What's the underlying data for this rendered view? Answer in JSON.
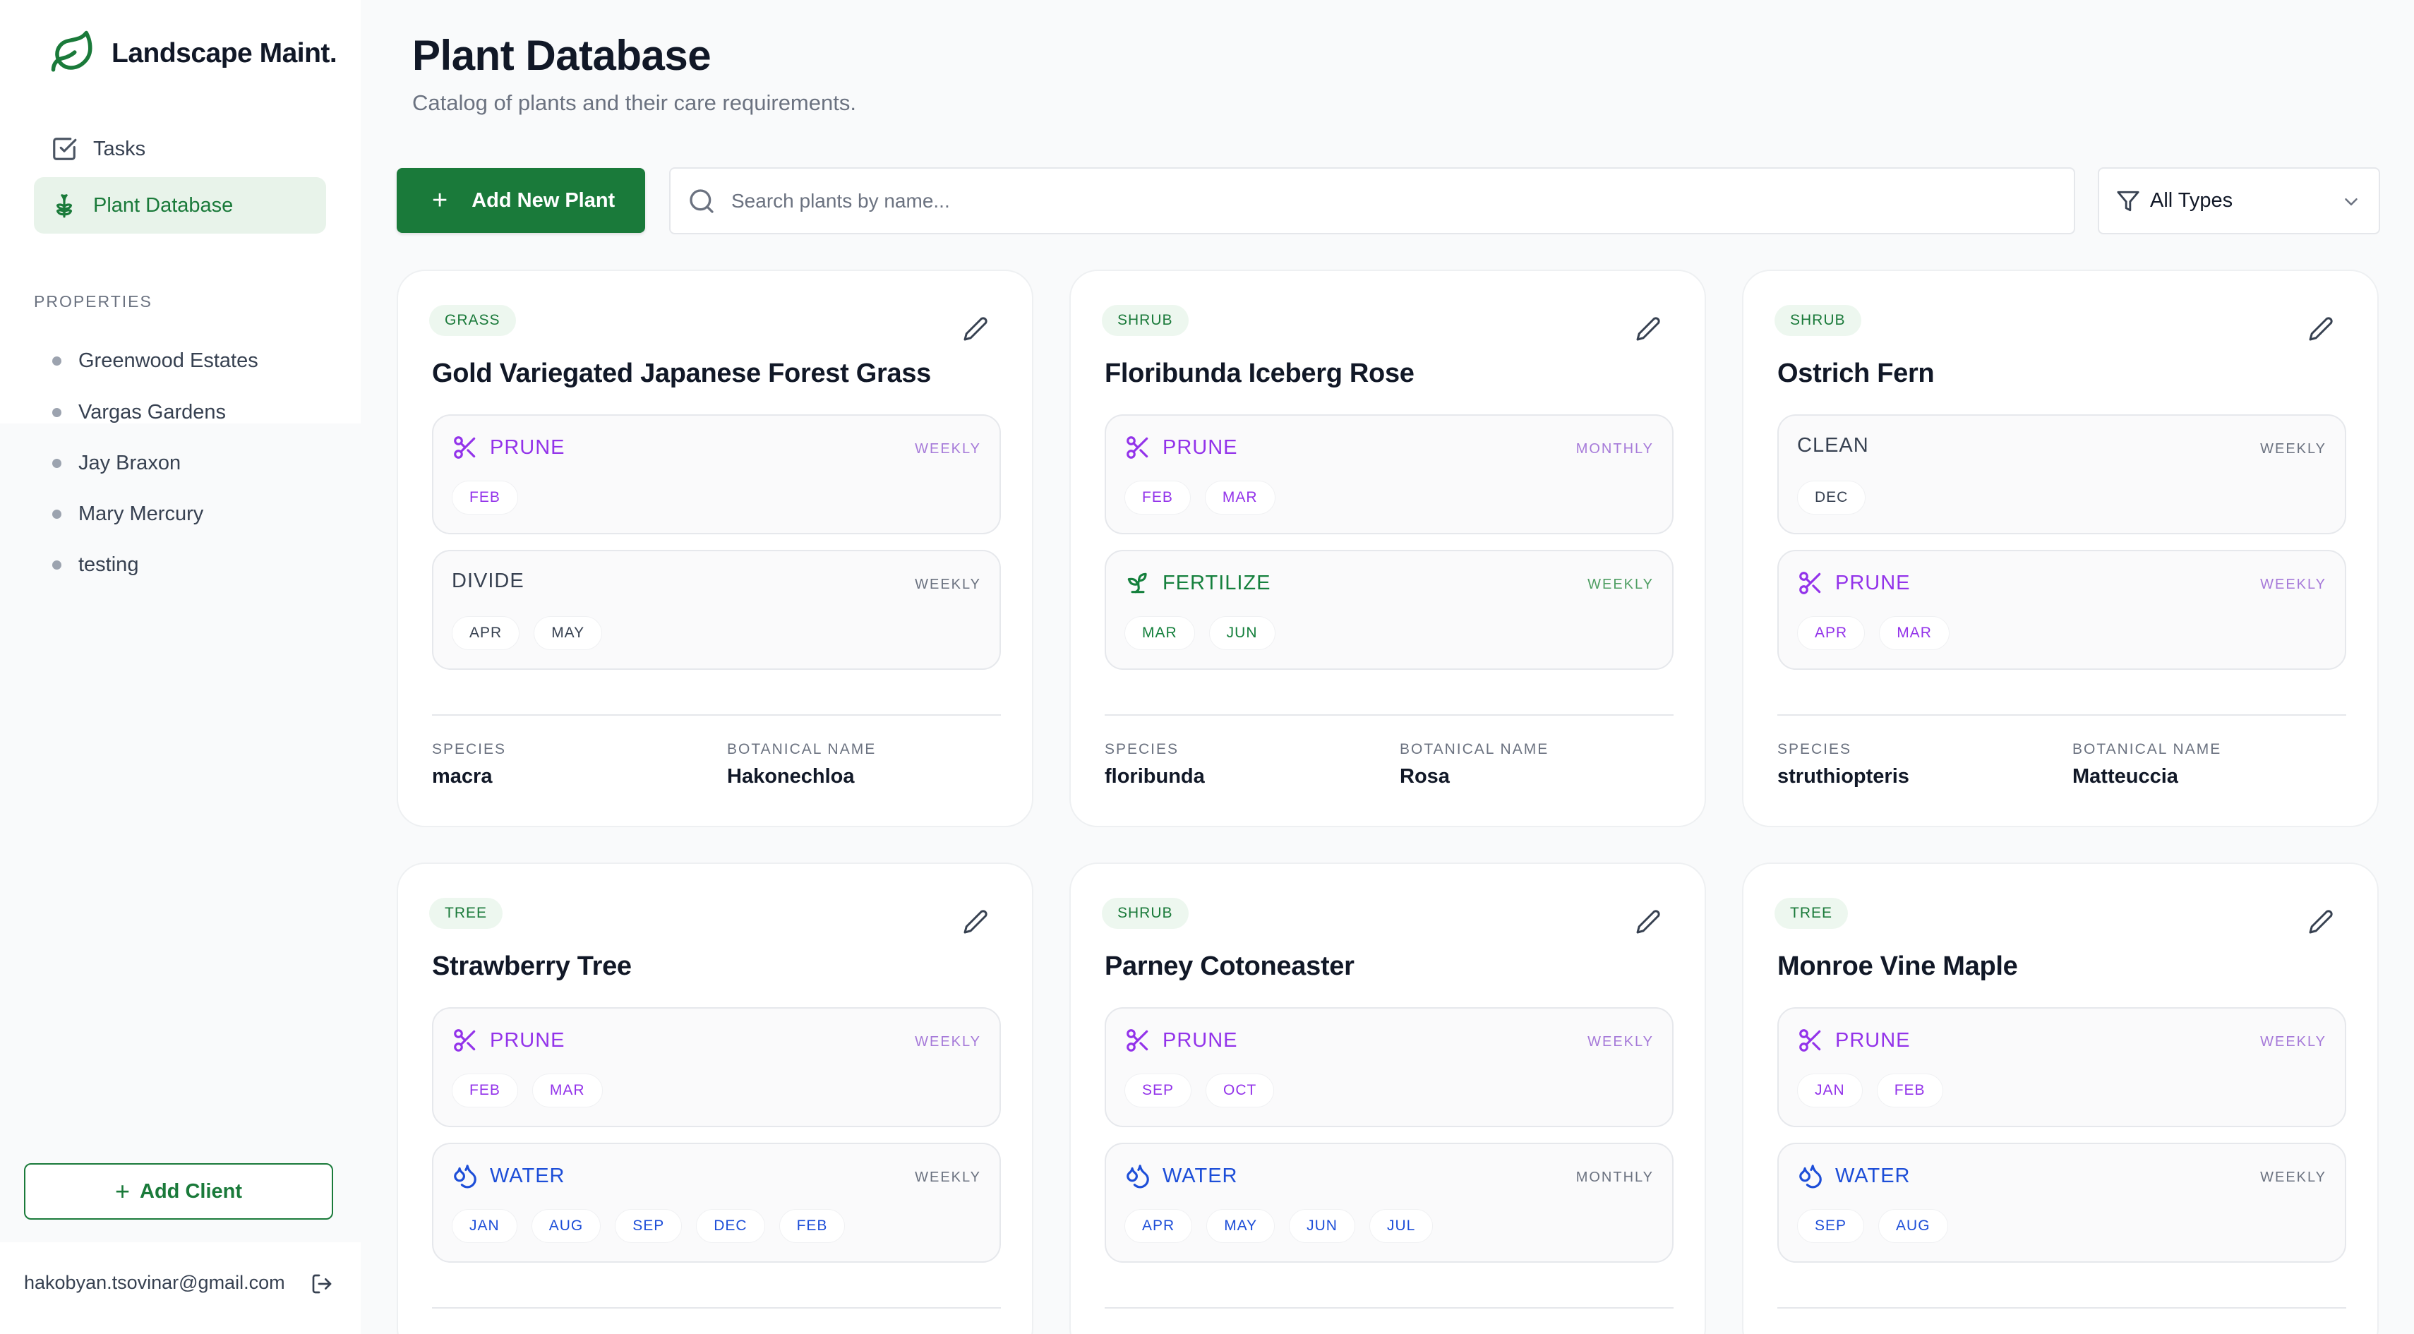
{
  "app": {
    "brand_name": "Landscape Maint.",
    "brand_color": "#1a7a3a"
  },
  "sidebar": {
    "nav": [
      {
        "label": "Tasks",
        "icon": "checkbox-icon",
        "active": false
      },
      {
        "label": "Plant Database",
        "icon": "sprout-icon",
        "active": true
      }
    ],
    "section_label": "PROPERTIES",
    "properties": [
      "Greenwood Estates",
      "Vargas Gardens",
      "Jay Braxon",
      "Mary Mercury",
      "testing"
    ],
    "add_client_label": "Add Client",
    "user_email": "hakobyan.tsovinar@gmail.com"
  },
  "header": {
    "title": "Plant Database",
    "subtitle": "Catalog of plants and their care requirements."
  },
  "toolbar": {
    "add_plant_label": "Add New Plant",
    "search_placeholder": "Search plants by name...",
    "filter_label": "All Types"
  },
  "plants": [
    {
      "type": "GRASS",
      "name": "Gold Variegated Japanese Forest Grass",
      "tasks": [
        {
          "name": "PRUNE",
          "kind": "prune",
          "frequency": "WEEKLY",
          "months": [
            "FEB"
          ]
        },
        {
          "name": "DIVIDE",
          "kind": "neutral",
          "frequency": "WEEKLY",
          "months": [
            "APR",
            "MAY"
          ]
        }
      ],
      "species_label": "SPECIES",
      "species": "macra",
      "botanical_label": "BOTANICAL NAME",
      "botanical": "Hakonechloa"
    },
    {
      "type": "SHRUB",
      "name": "Floribunda Iceberg Rose",
      "tasks": [
        {
          "name": "PRUNE",
          "kind": "prune",
          "frequency": "MONTHLY",
          "months": [
            "FEB",
            "MAR"
          ]
        },
        {
          "name": "FERTILIZE",
          "kind": "fert",
          "frequency": "WEEKLY",
          "months": [
            "MAR",
            "JUN"
          ]
        }
      ],
      "species_label": "SPECIES",
      "species": "floribunda",
      "botanical_label": "BOTANICAL NAME",
      "botanical": "Rosa"
    },
    {
      "type": "SHRUB",
      "name": "Ostrich Fern",
      "tasks": [
        {
          "name": "CLEAN",
          "kind": "neutral",
          "frequency": "WEEKLY",
          "months": [
            "DEC"
          ]
        },
        {
          "name": "PRUNE",
          "kind": "prune",
          "frequency": "WEEKLY",
          "months": [
            "APR",
            "MAR"
          ]
        }
      ],
      "species_label": "SPECIES",
      "species": "struthiopteris",
      "botanical_label": "BOTANICAL NAME",
      "botanical": "Matteuccia"
    },
    {
      "type": "TREE",
      "name": "Strawberry Tree",
      "tasks": [
        {
          "name": "PRUNE",
          "kind": "prune",
          "frequency": "WEEKLY",
          "months": [
            "FEB",
            "MAR"
          ]
        },
        {
          "name": "WATER",
          "kind": "water",
          "frequency": "WEEKLY",
          "months": [
            "JAN",
            "AUG",
            "SEP",
            "DEC",
            "FEB"
          ]
        }
      ]
    },
    {
      "type": "SHRUB",
      "name": "Parney Cotoneaster",
      "tasks": [
        {
          "name": "PRUNE",
          "kind": "prune",
          "frequency": "WEEKLY",
          "months": [
            "SEP",
            "OCT"
          ]
        },
        {
          "name": "WATER",
          "kind": "water",
          "frequency": "MONTHLY",
          "months": [
            "APR",
            "MAY",
            "JUN",
            "JUL"
          ]
        }
      ]
    },
    {
      "type": "TREE",
      "name": "Monroe Vine Maple",
      "tasks": [
        {
          "name": "PRUNE",
          "kind": "prune",
          "frequency": "WEEKLY",
          "months": [
            "JAN",
            "FEB"
          ]
        },
        {
          "name": "WATER",
          "kind": "water",
          "frequency": "WEEKLY",
          "months": [
            "SEP",
            "AUG"
          ]
        }
      ]
    }
  ]
}
